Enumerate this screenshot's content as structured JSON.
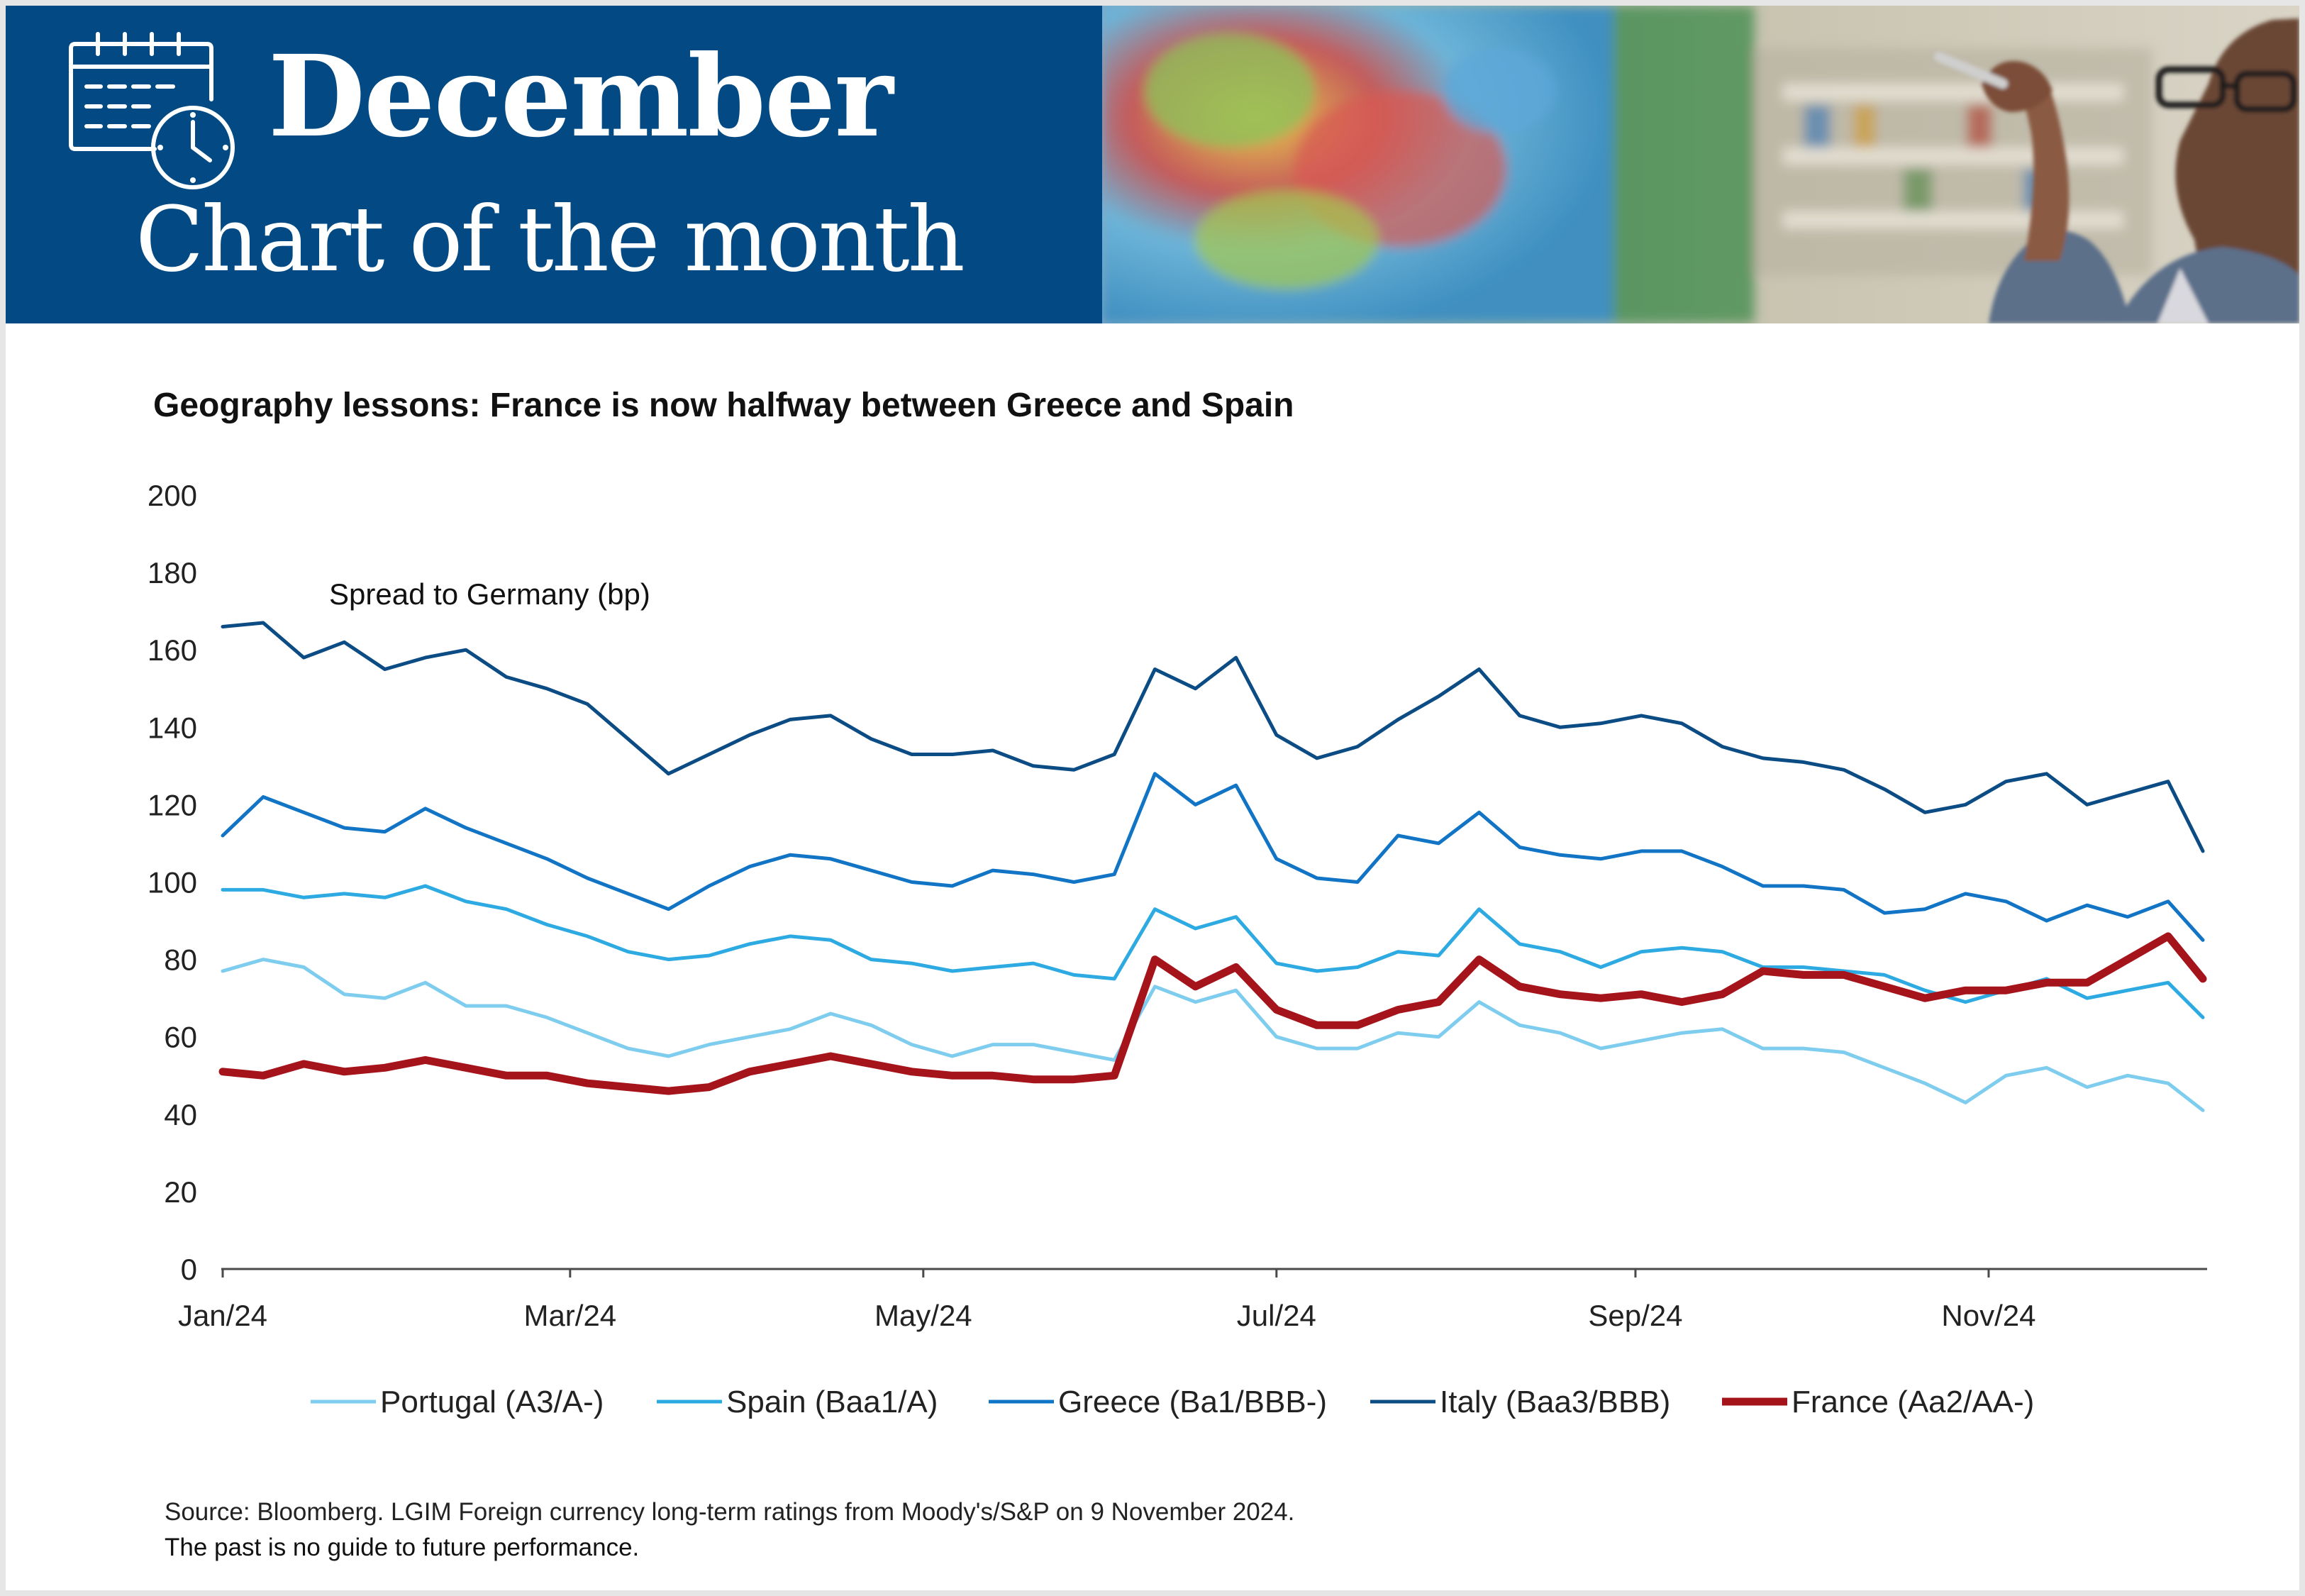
{
  "header": {
    "month": "December",
    "subtitle": "Chart of the month",
    "icon": "calendar-clock-icon",
    "photo": "teacher-pointing-at-map-photo"
  },
  "chart_data": {
    "type": "line",
    "title": "Geography lessons: France is now halfway between Greece and Spain",
    "annotation": "Spread to Germany (bp)",
    "xlabel": "",
    "ylabel": "",
    "ylim": [
      0,
      200
    ],
    "yticks": [
      0,
      20,
      40,
      60,
      80,
      100,
      120,
      140,
      160,
      180,
      200
    ],
    "xlim": [
      "2024-01-01",
      "2024-12-08"
    ],
    "xticks": [
      {
        "label": "Jan/24",
        "date": "2024-01-01"
      },
      {
        "label": "Mar/24",
        "date": "2024-03-01"
      },
      {
        "label": "May/24",
        "date": "2024-05-01"
      },
      {
        "label": "Jul/24",
        "date": "2024-07-01"
      },
      {
        "label": "Sep/24",
        "date": "2024-09-01"
      },
      {
        "label": "Nov/24",
        "date": "2024-11-01"
      }
    ],
    "grid": false,
    "legend_position": "bottom",
    "dates": [
      "2024-01-01",
      "2024-01-08",
      "2024-01-15",
      "2024-01-22",
      "2024-01-29",
      "2024-02-05",
      "2024-02-12",
      "2024-02-19",
      "2024-02-26",
      "2024-03-04",
      "2024-03-11",
      "2024-03-18",
      "2024-03-25",
      "2024-04-01",
      "2024-04-08",
      "2024-04-15",
      "2024-04-22",
      "2024-04-29",
      "2024-05-06",
      "2024-05-13",
      "2024-05-20",
      "2024-05-27",
      "2024-06-03",
      "2024-06-10",
      "2024-06-17",
      "2024-06-24",
      "2024-07-01",
      "2024-07-08",
      "2024-07-15",
      "2024-07-22",
      "2024-07-29",
      "2024-08-05",
      "2024-08-12",
      "2024-08-19",
      "2024-08-26",
      "2024-09-02",
      "2024-09-09",
      "2024-09-16",
      "2024-09-23",
      "2024-09-30",
      "2024-10-07",
      "2024-10-14",
      "2024-10-21",
      "2024-10-28",
      "2024-11-04",
      "2024-11-11",
      "2024-11-18",
      "2024-11-25",
      "2024-12-02",
      "2024-12-08"
    ],
    "series": [
      {
        "name": "Portugal (A3/A-)",
        "color": "#7fcdee",
        "width": 5,
        "values": [
          77,
          80,
          78,
          71,
          70,
          74,
          68,
          68,
          65,
          61,
          57,
          55,
          58,
          60,
          62,
          66,
          63,
          58,
          55,
          58,
          58,
          56,
          54,
          73,
          69,
          72,
          60,
          57,
          57,
          61,
          60,
          69,
          63,
          61,
          57,
          59,
          61,
          62,
          57,
          57,
          56,
          52,
          48,
          43,
          50,
          52,
          47,
          50,
          48,
          41
        ]
      },
      {
        "name": "Spain (Baa1/A)",
        "color": "#2eaae2",
        "width": 5,
        "values": [
          98,
          98,
          96,
          97,
          96,
          99,
          95,
          93,
          89,
          86,
          82,
          80,
          81,
          84,
          86,
          85,
          80,
          79,
          77,
          78,
          79,
          76,
          75,
          93,
          88,
          91,
          79,
          77,
          78,
          82,
          81,
          93,
          84,
          82,
          78,
          82,
          83,
          82,
          78,
          78,
          77,
          76,
          72,
          69,
          72,
          75,
          70,
          72,
          74,
          65
        ]
      },
      {
        "name": "Greece (Ba1/BBB-)",
        "color": "#1174c5",
        "width": 5,
        "values": [
          112,
          122,
          118,
          114,
          113,
          119,
          114,
          110,
          106,
          101,
          97,
          93,
          99,
          104,
          107,
          106,
          103,
          100,
          99,
          103,
          102,
          100,
          102,
          128,
          120,
          125,
          106,
          101,
          100,
          112,
          110,
          118,
          109,
          107,
          106,
          108,
          108,
          104,
          99,
          99,
          98,
          92,
          93,
          97,
          95,
          90,
          94,
          91,
          95,
          85
        ]
      },
      {
        "name": "Italy (Baa3/BBB)",
        "color": "#0c4c84",
        "width": 5,
        "values": [
          166,
          167,
          158,
          162,
          155,
          158,
          160,
          153,
          150,
          146,
          137,
          128,
          133,
          138,
          142,
          143,
          137,
          133,
          133,
          134,
          130,
          129,
          133,
          155,
          150,
          158,
          138,
          132,
          135,
          142,
          148,
          155,
          143,
          140,
          141,
          143,
          141,
          135,
          132,
          131,
          129,
          124,
          118,
          120,
          126,
          128,
          120,
          123,
          126,
          108
        ]
      },
      {
        "name": "France (Aa2/AA-)",
        "color": "#a6141b",
        "width": 11,
        "values": [
          51,
          50,
          53,
          51,
          52,
          54,
          52,
          50,
          50,
          48,
          47,
          46,
          47,
          51,
          53,
          55,
          53,
          51,
          50,
          50,
          49,
          49,
          50,
          80,
          73,
          78,
          67,
          63,
          63,
          67,
          69,
          80,
          73,
          71,
          70,
          71,
          69,
          71,
          77,
          76,
          76,
          73,
          70,
          72,
          72,
          74,
          74,
          80,
          86,
          75
        ]
      }
    ]
  },
  "footer": {
    "source": "Source: Bloomberg. LGIM Foreign currency long-term ratings from Moody's/S&P on 9 November 2024.",
    "disclaimer": "The past is no guide to future performance."
  }
}
